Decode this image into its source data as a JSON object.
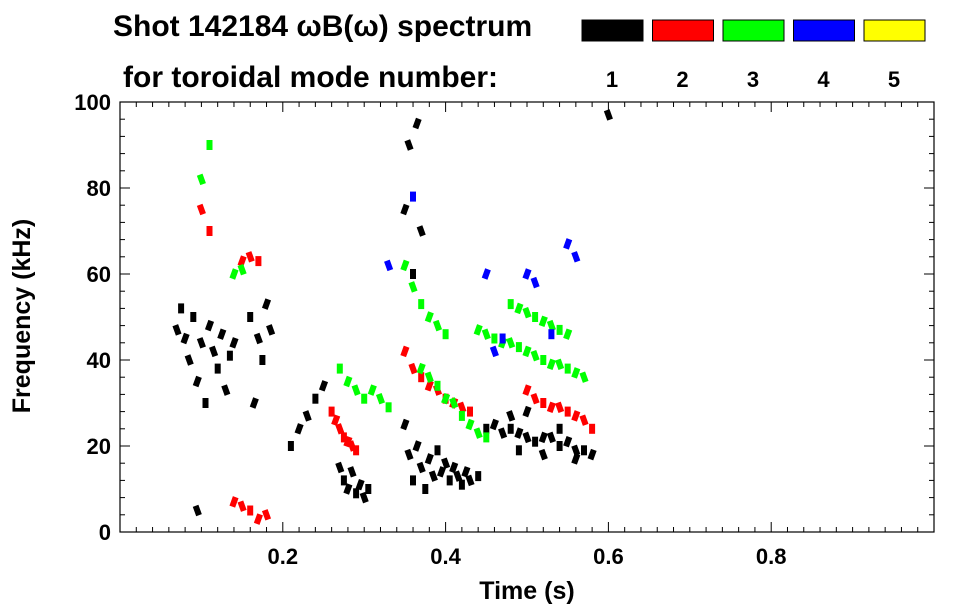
{
  "chart_data": {
    "type": "heatmap",
    "title_line1": "Shot 142184 ωB(ω) spectrum",
    "title_line2": "for toroidal mode number:",
    "xlabel": "Time (s)",
    "ylabel": "Frequency (kHz)",
    "xlim": [
      0.0,
      1.0
    ],
    "ylim": [
      0,
      100
    ],
    "x_ticks": [
      0.2,
      0.4,
      0.6,
      0.8
    ],
    "x_tick_labels": [
      "0.2",
      "0.4",
      "0.6",
      "0.8"
    ],
    "y_ticks": [
      0,
      20,
      40,
      60,
      80,
      100
    ],
    "y_tick_labels": [
      "0",
      "20",
      "40",
      "60",
      "80",
      "100"
    ],
    "legend": [
      {
        "label": "1",
        "color": "#000000"
      },
      {
        "label": "2",
        "color": "#ff0000"
      },
      {
        "label": "3",
        "color": "#00ff00"
      },
      {
        "label": "4",
        "color": "#0000ff"
      },
      {
        "label": "5",
        "color": "#ffff00"
      }
    ],
    "series": [
      {
        "mode": 1,
        "color": "#000000",
        "points": [
          [
            0.07,
            47
          ],
          [
            0.075,
            52
          ],
          [
            0.08,
            45
          ],
          [
            0.085,
            40
          ],
          [
            0.09,
            50
          ],
          [
            0.095,
            35
          ],
          [
            0.1,
            44
          ],
          [
            0.105,
            30
          ],
          [
            0.11,
            48
          ],
          [
            0.115,
            42
          ],
          [
            0.12,
            38
          ],
          [
            0.125,
            46
          ],
          [
            0.13,
            33
          ],
          [
            0.135,
            41
          ],
          [
            0.14,
            44
          ],
          [
            0.095,
            5
          ],
          [
            0.16,
            50
          ],
          [
            0.165,
            30
          ],
          [
            0.17,
            45
          ],
          [
            0.175,
            40
          ],
          [
            0.18,
            53
          ],
          [
            0.185,
            47
          ],
          [
            0.21,
            20
          ],
          [
            0.22,
            24
          ],
          [
            0.23,
            27
          ],
          [
            0.24,
            31
          ],
          [
            0.25,
            34
          ],
          [
            0.27,
            15
          ],
          [
            0.275,
            12
          ],
          [
            0.28,
            10
          ],
          [
            0.285,
            14
          ],
          [
            0.29,
            9
          ],
          [
            0.295,
            11
          ],
          [
            0.3,
            8
          ],
          [
            0.305,
            10
          ],
          [
            0.35,
            25
          ],
          [
            0.355,
            18
          ],
          [
            0.36,
            12
          ],
          [
            0.365,
            20
          ],
          [
            0.37,
            15
          ],
          [
            0.375,
            10
          ],
          [
            0.38,
            17
          ],
          [
            0.385,
            13
          ],
          [
            0.39,
            19
          ],
          [
            0.395,
            14
          ],
          [
            0.4,
            16
          ],
          [
            0.405,
            12
          ],
          [
            0.41,
            15
          ],
          [
            0.415,
            13
          ],
          [
            0.42,
            11
          ],
          [
            0.425,
            14
          ],
          [
            0.43,
            12
          ],
          [
            0.44,
            13
          ],
          [
            0.35,
            75
          ],
          [
            0.355,
            90
          ],
          [
            0.36,
            60
          ],
          [
            0.365,
            95
          ],
          [
            0.37,
            70
          ],
          [
            0.45,
            24
          ],
          [
            0.46,
            25
          ],
          [
            0.47,
            23
          ],
          [
            0.48,
            24
          ],
          [
            0.49,
            23
          ],
          [
            0.5,
            22
          ],
          [
            0.51,
            21
          ],
          [
            0.52,
            22
          ],
          [
            0.53,
            22
          ],
          [
            0.54,
            20
          ],
          [
            0.55,
            21
          ],
          [
            0.56,
            19
          ],
          [
            0.57,
            19
          ],
          [
            0.58,
            18
          ],
          [
            0.48,
            27
          ],
          [
            0.49,
            19
          ],
          [
            0.5,
            28
          ],
          [
            0.52,
            18
          ],
          [
            0.54,
            24
          ],
          [
            0.56,
            17
          ],
          [
            0.6,
            97
          ]
        ]
      },
      {
        "mode": 2,
        "color": "#ff0000",
        "points": [
          [
            0.1,
            75
          ],
          [
            0.11,
            70
          ],
          [
            0.15,
            63
          ],
          [
            0.16,
            64
          ],
          [
            0.17,
            63
          ],
          [
            0.14,
            7
          ],
          [
            0.15,
            6
          ],
          [
            0.16,
            5
          ],
          [
            0.17,
            3
          ],
          [
            0.18,
            4
          ],
          [
            0.26,
            28
          ],
          [
            0.265,
            26
          ],
          [
            0.27,
            24
          ],
          [
            0.275,
            22
          ],
          [
            0.28,
            21
          ],
          [
            0.285,
            20
          ],
          [
            0.29,
            19
          ],
          [
            0.35,
            42
          ],
          [
            0.36,
            38
          ],
          [
            0.37,
            36
          ],
          [
            0.38,
            34
          ],
          [
            0.39,
            33
          ],
          [
            0.4,
            31
          ],
          [
            0.41,
            30
          ],
          [
            0.42,
            29
          ],
          [
            0.43,
            28
          ],
          [
            0.5,
            33
          ],
          [
            0.51,
            31
          ],
          [
            0.52,
            30
          ],
          [
            0.53,
            29
          ],
          [
            0.54,
            29
          ],
          [
            0.55,
            28
          ],
          [
            0.56,
            27
          ],
          [
            0.57,
            26
          ],
          [
            0.58,
            24
          ]
        ]
      },
      {
        "mode": 3,
        "color": "#00ff00",
        "points": [
          [
            0.1,
            82
          ],
          [
            0.11,
            90
          ],
          [
            0.14,
            60
          ],
          [
            0.15,
            61
          ],
          [
            0.27,
            38
          ],
          [
            0.28,
            35
          ],
          [
            0.29,
            33
          ],
          [
            0.3,
            31
          ],
          [
            0.31,
            33
          ],
          [
            0.32,
            31
          ],
          [
            0.33,
            29
          ],
          [
            0.35,
            62
          ],
          [
            0.36,
            57
          ],
          [
            0.37,
            53
          ],
          [
            0.38,
            50
          ],
          [
            0.39,
            48
          ],
          [
            0.4,
            46
          ],
          [
            0.37,
            38
          ],
          [
            0.38,
            36
          ],
          [
            0.39,
            34
          ],
          [
            0.4,
            31
          ],
          [
            0.41,
            30
          ],
          [
            0.42,
            27
          ],
          [
            0.43,
            25
          ],
          [
            0.44,
            23
          ],
          [
            0.45,
            22
          ],
          [
            0.44,
            47
          ],
          [
            0.45,
            46
          ],
          [
            0.46,
            45
          ],
          [
            0.47,
            44
          ],
          [
            0.48,
            44
          ],
          [
            0.49,
            43
          ],
          [
            0.5,
            42
          ],
          [
            0.51,
            41
          ],
          [
            0.52,
            40
          ],
          [
            0.53,
            39
          ],
          [
            0.54,
            39
          ],
          [
            0.55,
            38
          ],
          [
            0.56,
            37
          ],
          [
            0.57,
            36
          ],
          [
            0.48,
            53
          ],
          [
            0.49,
            52
          ],
          [
            0.5,
            51
          ],
          [
            0.51,
            50
          ],
          [
            0.52,
            49
          ],
          [
            0.53,
            48
          ],
          [
            0.54,
            47
          ],
          [
            0.55,
            46
          ]
        ]
      },
      {
        "mode": 4,
        "color": "#0000ff",
        "points": [
          [
            0.33,
            62
          ],
          [
            0.36,
            78
          ],
          [
            0.45,
            60
          ],
          [
            0.46,
            42
          ],
          [
            0.47,
            45
          ],
          [
            0.5,
            60
          ],
          [
            0.51,
            58
          ],
          [
            0.53,
            46
          ],
          [
            0.55,
            67
          ],
          [
            0.56,
            64
          ]
        ]
      }
    ]
  }
}
